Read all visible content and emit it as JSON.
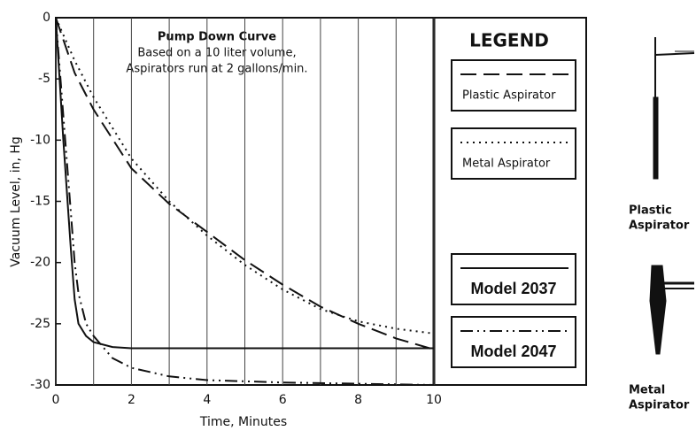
{
  "chart_data": {
    "type": "line",
    "annotation": [
      "Pump Down Curve",
      "Based on a 10 liter volume,",
      "Aspirators run at 2 gallons/min."
    ],
    "xlabel": "Time, Minutes",
    "ylabel": "Vacuum Level, in, Hg",
    "legend_title": "LEGEND",
    "xlim": [
      0,
      10
    ],
    "ylim": [
      -30,
      0
    ],
    "xticks": [
      0,
      2,
      4,
      6,
      8,
      10
    ],
    "xminor": [
      1,
      3,
      5,
      7,
      9
    ],
    "yticks": [
      0,
      -5,
      -10,
      -15,
      -20,
      -25,
      -30
    ],
    "series": [
      {
        "name": "Plastic Aspirator",
        "color": "#111111",
        "dash": "18 8",
        "bold": false,
        "x": [
          0,
          0.5,
          1,
          2,
          3,
          4,
          5,
          6,
          7,
          8,
          9,
          10
        ],
        "values": [
          0,
          -4.5,
          -7.5,
          -12.3,
          -15.2,
          -17.5,
          -19.8,
          -21.8,
          -23.6,
          -25.0,
          -26.2,
          -27.1
        ]
      },
      {
        "name": "Metal Aspirator",
        "color": "#111111",
        "dash": "2 5",
        "bold": false,
        "x": [
          0,
          0.5,
          1,
          2,
          3,
          4,
          5,
          6,
          7,
          8,
          9,
          10
        ],
        "values": [
          0,
          -3.5,
          -6.5,
          -11.5,
          -15.0,
          -17.8,
          -20.2,
          -22.2,
          -23.8,
          -24.8,
          -25.4,
          -25.8
        ]
      },
      {
        "name": "Model 2037",
        "color": "#111111",
        "dash": "none",
        "bold": true,
        "x": [
          0,
          0.1,
          0.2,
          0.3,
          0.4,
          0.5,
          0.6,
          0.8,
          1,
          1.5,
          2,
          10
        ],
        "values": [
          0,
          -5,
          -10,
          -14.5,
          -19,
          -23,
          -25,
          -26,
          -26.5,
          -26.9,
          -27,
          -27
        ]
      },
      {
        "name": "Model 2047",
        "color": "#111111",
        "dash": "14 5 2 5 2 5",
        "bold": true,
        "x": [
          0,
          0.2,
          0.4,
          0.5,
          0.6,
          0.8,
          1,
          1.5,
          2,
          3,
          4,
          6,
          8,
          10
        ],
        "values": [
          0,
          -8,
          -16,
          -20,
          -22.5,
          -25,
          -26,
          -27.8,
          -28.6,
          -29.3,
          -29.6,
          -29.8,
          -29.9,
          -30
        ]
      }
    ],
    "side_labels": [
      [
        "Plastic",
        "Aspirator"
      ],
      [
        "Metal",
        "Aspirator"
      ]
    ]
  }
}
